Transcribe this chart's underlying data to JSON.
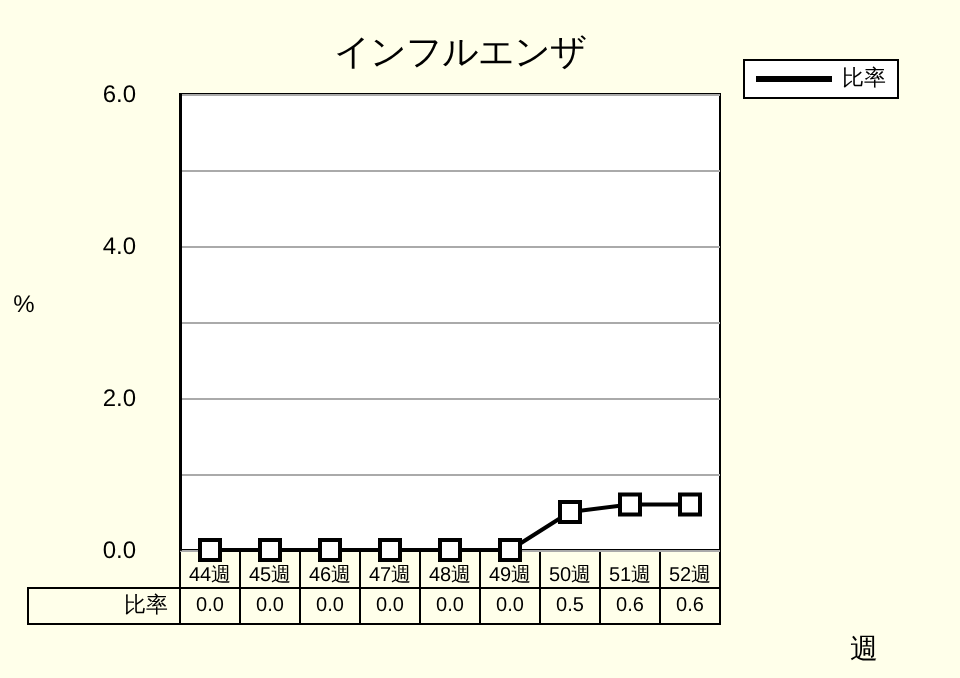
{
  "chart_data": {
    "type": "line",
    "title": "インフルエンザ",
    "ylabel": "%",
    "xlabel": "週",
    "categories": [
      "44週",
      "45週",
      "46週",
      "47週",
      "48週",
      "49週",
      "50週",
      "51週",
      "52週"
    ],
    "series": [
      {
        "name": "比率",
        "color": "#000000",
        "values": [
          0,
          0,
          0,
          0,
          0,
          0,
          0.5,
          0.6,
          0.6
        ],
        "value_labels": [
          "0.0",
          "0.0",
          "0.0",
          "0.0",
          "0.0",
          "0.0",
          "0.5",
          "0.6",
          "0.6"
        ]
      }
    ],
    "ylim": [
      0,
      6
    ],
    "yticks": [
      {
        "value": 0,
        "label": "0.0"
      },
      {
        "value": 1,
        "label": null
      },
      {
        "value": 2,
        "label": "2.0"
      },
      {
        "value": 3,
        "label": null
      },
      {
        "value": 4,
        "label": "4.0"
      },
      {
        "value": 5,
        "label": null
      },
      {
        "value": 6,
        "label": "6.0"
      }
    ],
    "grid": "y",
    "legend": "top right",
    "marker": "square",
    "line_style": "solid"
  }
}
